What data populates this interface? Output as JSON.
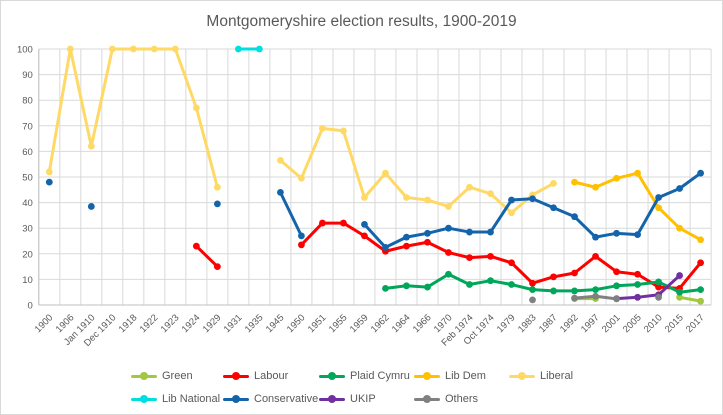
{
  "title": "Montgomeryshire election results, 1900-2019",
  "chart_data": {
    "type": "line",
    "title": "Montgomeryshire election results, 1900-2019",
    "xlabel": "",
    "ylabel": "",
    "grid": true,
    "legend_position": "bottom",
    "y_axis": {
      "min": 0,
      "max": 100,
      "tick_step": 10,
      "ticks": [
        0,
        10,
        20,
        30,
        40,
        50,
        60,
        70,
        80,
        90,
        100
      ]
    },
    "categories": [
      "1900",
      "1906",
      "Jan 1910",
      "Dec 1910",
      "1918",
      "1922",
      "1923",
      "1924",
      "1929",
      "1931",
      "1935",
      "1945",
      "1950",
      "1951",
      "1955",
      "1959",
      "1962",
      "1964",
      "1966",
      "1970",
      "Feb 1974",
      "Oct 1974",
      "1979",
      "1983",
      "1987",
      "1992",
      "1997",
      "2001",
      "2005",
      "2010",
      "2015",
      "2017"
    ],
    "series": [
      {
        "name": "Green",
        "color": "#a2c840",
        "values": [
          null,
          null,
          null,
          null,
          null,
          null,
          null,
          null,
          null,
          null,
          null,
          null,
          null,
          null,
          null,
          null,
          null,
          null,
          null,
          null,
          null,
          null,
          null,
          null,
          null,
          2.5,
          2.5,
          null,
          null,
          null,
          3,
          1.5
        ]
      },
      {
        "name": "Labour",
        "color": "#ff0000",
        "values": [
          null,
          null,
          null,
          null,
          null,
          null,
          null,
          23,
          15,
          null,
          null,
          null,
          23.5,
          32,
          32,
          27,
          21,
          23,
          24.5,
          20.5,
          18.5,
          19,
          16.5,
          8.5,
          11,
          12.5,
          19,
          13,
          12,
          7,
          6.5,
          16.5
        ]
      },
      {
        "name": "Plaid Cymru",
        "color": "#00a65a",
        "values": [
          null,
          null,
          null,
          null,
          null,
          null,
          null,
          null,
          null,
          null,
          null,
          null,
          null,
          null,
          null,
          null,
          6.5,
          7.5,
          7,
          12,
          8,
          9.5,
          8,
          6,
          5.5,
          5.5,
          6,
          7.5,
          8,
          9,
          5,
          6
        ]
      },
      {
        "name": "Lib Dem",
        "color": "#ffc000",
        "values": [
          null,
          null,
          null,
          null,
          null,
          null,
          null,
          null,
          null,
          null,
          null,
          null,
          null,
          null,
          null,
          null,
          null,
          null,
          null,
          null,
          null,
          null,
          null,
          null,
          null,
          48,
          46,
          49.5,
          51.5,
          38,
          30,
          25.5
        ]
      },
      {
        "name": "Liberal",
        "color": "#ffd966",
        "values": [
          52,
          100,
          62,
          100,
          100,
          100,
          100,
          77,
          46,
          null,
          null,
          56.5,
          49.5,
          69,
          68,
          42,
          51.5,
          42,
          41,
          38.5,
          46,
          43.5,
          36,
          43,
          47.5,
          null,
          null,
          null,
          null,
          null,
          null,
          null
        ]
      },
      {
        "name": "Lib National",
        "color": "#00dee0",
        "values": [
          null,
          null,
          null,
          null,
          null,
          null,
          null,
          null,
          null,
          100,
          100,
          null,
          null,
          null,
          null,
          null,
          null,
          null,
          null,
          null,
          null,
          null,
          null,
          null,
          null,
          null,
          null,
          null,
          null,
          null,
          null,
          null
        ]
      },
      {
        "name": "Conservative",
        "color": "#1464ac",
        "values": [
          48,
          null,
          38.5,
          null,
          null,
          null,
          null,
          null,
          39.5,
          null,
          null,
          44,
          27,
          null,
          null,
          31.5,
          22.5,
          26.5,
          28,
          30,
          28.5,
          28.5,
          41,
          41.5,
          38,
          34.5,
          26.5,
          28,
          27.5,
          42,
          45.5,
          51.5
        ]
      },
      {
        "name": "UKIP",
        "color": "#7030a0",
        "values": [
          null,
          null,
          null,
          null,
          null,
          null,
          null,
          null,
          null,
          null,
          null,
          null,
          null,
          null,
          null,
          null,
          null,
          null,
          null,
          null,
          null,
          null,
          null,
          null,
          null,
          null,
          null,
          2.5,
          3,
          4,
          11.5,
          null
        ]
      },
      {
        "name": "Others",
        "color": "#808080",
        "values": [
          null,
          null,
          null,
          null,
          null,
          null,
          null,
          null,
          null,
          null,
          null,
          null,
          null,
          null,
          null,
          null,
          null,
          null,
          null,
          null,
          null,
          null,
          null,
          2,
          null,
          2.7,
          3.4,
          2.4,
          null,
          3,
          null,
          null
        ]
      }
    ],
    "legend_rows": [
      [
        "Green",
        "Labour",
        "Plaid Cymru",
        "Lib Dem",
        "Liberal"
      ],
      [
        "Lib National",
        "Conservative",
        "UKIP",
        "Others"
      ]
    ]
  },
  "colors": {
    "text": "#595959",
    "gridline": "#d9d9d9",
    "axis_line": "#bfbfbf",
    "background": "#ffffff"
  }
}
